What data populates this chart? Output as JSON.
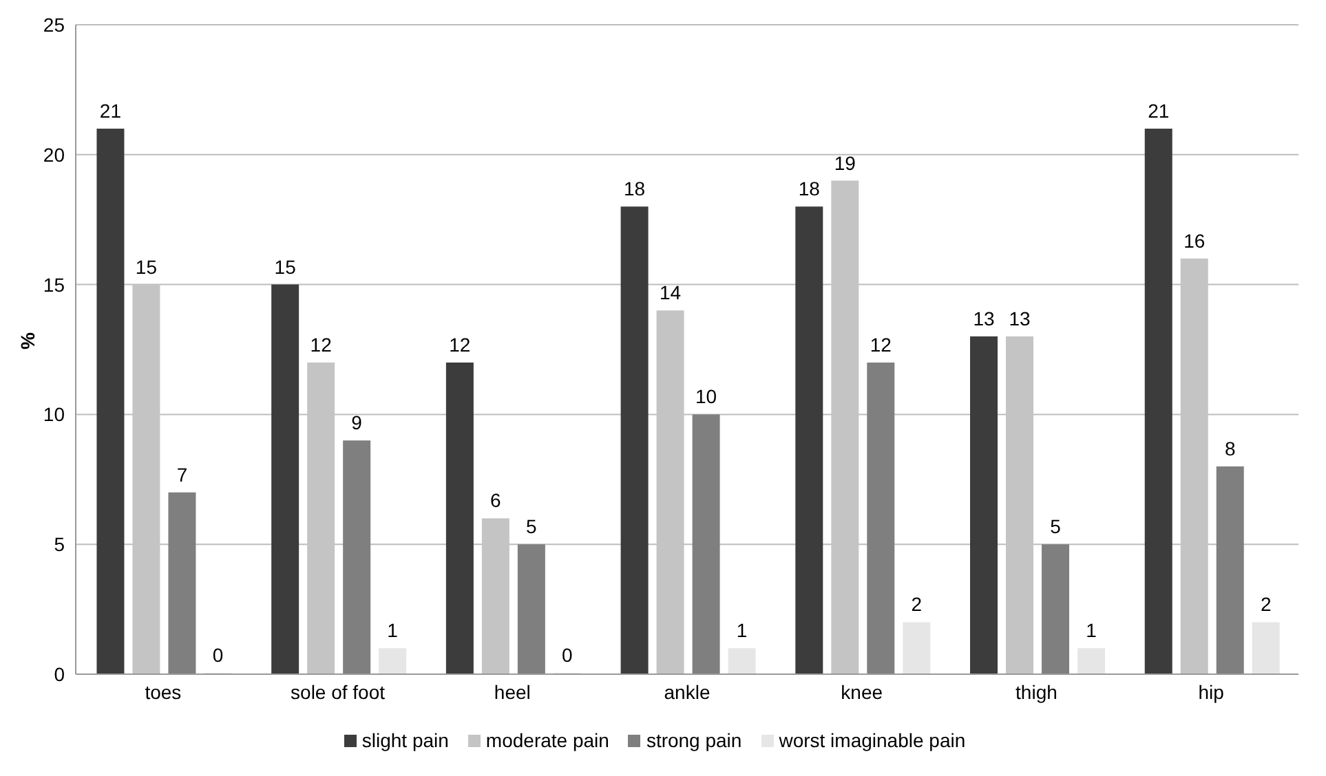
{
  "chart_data": {
    "type": "bar",
    "ylabel": "%",
    "categories": [
      "toes",
      "sole of foot",
      "heel",
      "ankle",
      "knee",
      "thigh",
      "hip"
    ],
    "series": [
      {
        "name": "slight pain",
        "color": "#3c3c3c",
        "values": [
          21,
          15,
          12,
          18,
          18,
          13,
          21
        ]
      },
      {
        "name": "moderate pain",
        "color": "#c4c4c4",
        "values": [
          15,
          12,
          6,
          14,
          19,
          13,
          16
        ]
      },
      {
        "name": "strong pain",
        "color": "#7f7f7f",
        "values": [
          7,
          9,
          5,
          10,
          12,
          5,
          8
        ]
      },
      {
        "name": "worst imaginable pain",
        "color": "#e6e6e6",
        "values": [
          0,
          1,
          0,
          1,
          2,
          1,
          2
        ]
      }
    ],
    "ylim": [
      0,
      25
    ],
    "yticks": [
      0,
      5,
      10,
      15,
      20,
      25
    ],
    "grid": "y",
    "legend": "bottom",
    "data_labels": true
  }
}
